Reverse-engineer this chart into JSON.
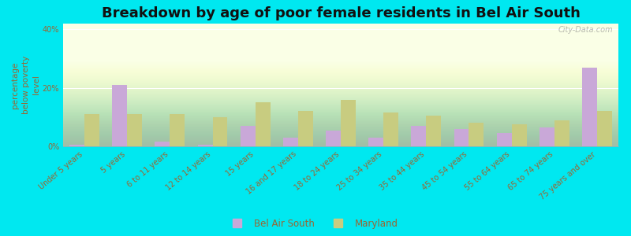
{
  "title": "Breakdown by age of poor female residents in Bel Air South",
  "ylabel": "percentage\nbelow poverty\nlevel",
  "categories": [
    "Under 5 years",
    "5 years",
    "6 to 11 years",
    "12 to 14 years",
    "15 years",
    "16 and 17 years",
    "18 to 24 years",
    "25 to 34 years",
    "35 to 44 years",
    "45 to 54 years",
    "55 to 64 years",
    "65 to 74 years",
    "75 years and over"
  ],
  "bel_air_south": [
    0.5,
    21.0,
    1.5,
    0.5,
    7.0,
    3.0,
    5.5,
    3.0,
    7.0,
    6.0,
    4.5,
    6.5,
    27.0
  ],
  "maryland": [
    11.0,
    11.0,
    11.0,
    10.0,
    15.0,
    12.0,
    16.0,
    11.5,
    10.5,
    8.0,
    7.5,
    9.0,
    12.0
  ],
  "bar_color_bel_air": "#c9a8d8",
  "bar_color_maryland": "#c8cc80",
  "background_color_chart_top": "#e8f5d0",
  "background_color_chart_bottom": "#f8ffe8",
  "background_color_outer": "#00e8f0",
  "ylim": [
    0,
    42
  ],
  "yticks": [
    0,
    20,
    40
  ],
  "ytick_labels": [
    "0%",
    "20%",
    "40%"
  ],
  "title_fontsize": 13,
  "axis_label_fontsize": 7.5,
  "tick_fontsize": 7,
  "watermark": "City-Data.com",
  "legend_bel_air": "Bel Air South",
  "legend_maryland": "Maryland"
}
